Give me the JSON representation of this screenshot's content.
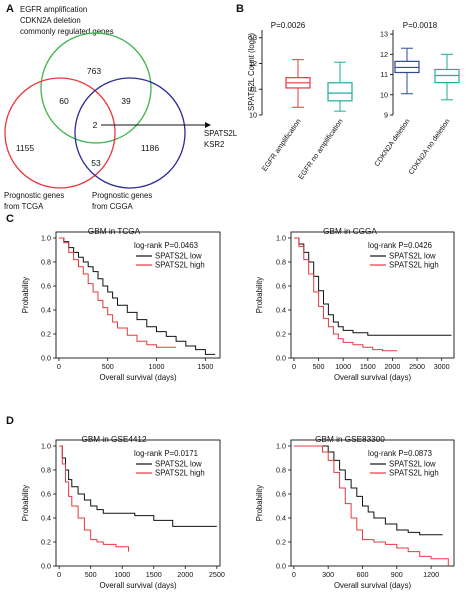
{
  "panels": {
    "A": {
      "letter": "A",
      "venn": {
        "top_label_lines": [
          "EGFR amplification",
          "CDKN2A deletion",
          "commonly regulated genes"
        ],
        "left_label_lines": [
          "Prognostic genes",
          "from TCGA"
        ],
        "right_label_lines": [
          "Prognostic genes",
          "from CGGA"
        ],
        "arrow_label_lines": [
          "SPATS2L",
          "KSR2"
        ],
        "counts": {
          "top_only": "763",
          "left_only": "1155",
          "right_only": "1186",
          "top_left": "60",
          "top_right": "39",
          "left_right": "53",
          "all_three": "2"
        },
        "colors": {
          "top": "#3cb44b",
          "left": "#e8383d",
          "right": "#2b2b9a"
        }
      }
    },
    "B": {
      "letter": "B",
      "ylabel": "SPATS2L Count (log2)",
      "left": {
        "pvalue": "P=0.0026",
        "yticks": [
          "10",
          "11",
          "12",
          "13"
        ],
        "groups": [
          "EGFR amplification",
          "EGFR no amplification"
        ],
        "colors": [
          "#e8383d",
          "#1fae9a"
        ]
      },
      "right": {
        "pvalue": "P=0.0018",
        "yticks": [
          "9",
          "10",
          "11",
          "12",
          "13"
        ],
        "groups": [
          "CDKN2A deletion",
          "CDKN2A no deletion"
        ],
        "colors": [
          "#2b4a9a",
          "#1fae9a"
        ]
      }
    },
    "C": {
      "letter": "C"
    },
    "D": {
      "letter": "D"
    }
  },
  "legend": {
    "low": "SPATS2L low",
    "high": "SPATS2L high"
  },
  "km_common": {
    "ylabel": "Probability",
    "xlabel": "Overall survival (days)",
    "yticks": [
      "0.0",
      "0.2",
      "0.4",
      "0.6",
      "0.8",
      "1.0"
    ]
  },
  "km_plots": [
    {
      "title": "GBM in TCGA",
      "pvalue": "log-rank P=0.0463",
      "xticks": [
        "0",
        "500",
        "1000",
        "1500"
      ]
    },
    {
      "title": "GBM in CGGA",
      "pvalue": "log-rank P=0.0426",
      "xticks": [
        "0",
        "500",
        "1000",
        "1500",
        "2000",
        "2500",
        "3000"
      ]
    },
    {
      "title": "GBM in GSE4412",
      "pvalue": "log-rank P=0.0171",
      "xticks": [
        "0",
        "500",
        "1000",
        "1500",
        "2000",
        "2500"
      ]
    },
    {
      "title": "GBM in GSE83300",
      "pvalue": "log-rank P=0.0873",
      "xticks": [
        "0",
        "300",
        "600",
        "900",
        "1200"
      ]
    }
  ],
  "colors": {
    "low": "#111111",
    "high": "#e8383d"
  },
  "chart_data": [
    {
      "type": "box",
      "pvalue": "P=0.0026",
      "ylabel": "SPATS2L Count (log2)",
      "ylim": [
        10,
        13.3
      ],
      "groups": [
        {
          "name": "EGFR amplification",
          "whisker_low": 10.3,
          "q1": 11.05,
          "median": 11.25,
          "q3": 11.45,
          "whisker_high": 12.15
        },
        {
          "name": "EGFR no amplification",
          "whisker_low": 10.15,
          "q1": 10.55,
          "median": 10.85,
          "q3": 11.25,
          "whisker_high": 12.05
        }
      ]
    },
    {
      "type": "box",
      "pvalue": "P=0.0018",
      "ylabel": "SPATS2L Count (log2)",
      "ylim": [
        9,
        13.2
      ],
      "groups": [
        {
          "name": "CDKN2A deletion",
          "whisker_low": 10.05,
          "q1": 11.1,
          "median": 11.35,
          "q3": 11.65,
          "whisker_high": 12.3
        },
        {
          "name": "CDKN2A no deletion",
          "whisker_low": 9.75,
          "q1": 10.6,
          "median": 10.95,
          "q3": 11.25,
          "whisker_high": 12.0
        }
      ]
    },
    {
      "type": "line",
      "title": "GBM in TCGA",
      "xlabel": "Overall survival (days)",
      "ylabel": "Probability",
      "xlim": [
        -30,
        1650
      ],
      "ylim": [
        0,
        1.05
      ],
      "series": [
        {
          "name": "SPATS2L low",
          "points": [
            [
              0,
              1.0
            ],
            [
              50,
              0.97
            ],
            [
              100,
              0.92
            ],
            [
              150,
              0.88
            ],
            [
              200,
              0.84
            ],
            [
              250,
              0.8
            ],
            [
              300,
              0.76
            ],
            [
              350,
              0.72
            ],
            [
              400,
              0.66
            ],
            [
              450,
              0.6
            ],
            [
              500,
              0.55
            ],
            [
              550,
              0.5
            ],
            [
              600,
              0.44
            ],
            [
              700,
              0.38
            ],
            [
              800,
              0.32
            ],
            [
              900,
              0.26
            ],
            [
              1000,
              0.22
            ],
            [
              1100,
              0.18
            ],
            [
              1200,
              0.14
            ],
            [
              1300,
              0.1
            ],
            [
              1400,
              0.07
            ],
            [
              1500,
              0.03
            ],
            [
              1600,
              0.03
            ]
          ]
        },
        {
          "name": "SPATS2L high",
          "points": [
            [
              0,
              1.0
            ],
            [
              50,
              0.96
            ],
            [
              100,
              0.88
            ],
            [
              150,
              0.82
            ],
            [
              200,
              0.76
            ],
            [
              250,
              0.7
            ],
            [
              300,
              0.62
            ],
            [
              350,
              0.55
            ],
            [
              400,
              0.48
            ],
            [
              450,
              0.42
            ],
            [
              500,
              0.36
            ],
            [
              550,
              0.3
            ],
            [
              600,
              0.25
            ],
            [
              700,
              0.19
            ],
            [
              800,
              0.14
            ],
            [
              900,
              0.11
            ],
            [
              1000,
              0.09
            ],
            [
              1100,
              0.09
            ],
            [
              1200,
              0.09
            ]
          ]
        }
      ]
    },
    {
      "type": "line",
      "title": "GBM in CGGA",
      "xlabel": "Overall survival (days)",
      "ylabel": "Probability",
      "xlim": [
        -60,
        3250
      ],
      "ylim": [
        0,
        1.05
      ],
      "series": [
        {
          "name": "SPATS2L low",
          "points": [
            [
              0,
              1.0
            ],
            [
              100,
              0.95
            ],
            [
              200,
              0.88
            ],
            [
              300,
              0.8
            ],
            [
              400,
              0.68
            ],
            [
              500,
              0.56
            ],
            [
              600,
              0.45
            ],
            [
              700,
              0.36
            ],
            [
              800,
              0.3
            ],
            [
              900,
              0.26
            ],
            [
              1000,
              0.23
            ],
            [
              1200,
              0.21
            ],
            [
              1500,
              0.19
            ],
            [
              2000,
              0.19
            ],
            [
              3200,
              0.19
            ]
          ]
        },
        {
          "name": "SPATS2L high",
          "points": [
            [
              0,
              1.0
            ],
            [
              100,
              0.93
            ],
            [
              200,
              0.82
            ],
            [
              300,
              0.7
            ],
            [
              400,
              0.55
            ],
            [
              500,
              0.43
            ],
            [
              600,
              0.33
            ],
            [
              700,
              0.26
            ],
            [
              800,
              0.2
            ],
            [
              900,
              0.16
            ],
            [
              1000,
              0.13
            ],
            [
              1200,
              0.11
            ],
            [
              1400,
              0.09
            ],
            [
              1600,
              0.07
            ],
            [
              1800,
              0.06
            ],
            [
              2100,
              0.06
            ]
          ]
        }
      ]
    },
    {
      "type": "line",
      "title": "GBM in GSE4412",
      "xlabel": "Overall survival (days)",
      "ylabel": "Probability",
      "xlim": [
        -50,
        2550
      ],
      "ylim": [
        0,
        1.05
      ],
      "series": [
        {
          "name": "SPATS2L low",
          "points": [
            [
              0,
              1.0
            ],
            [
              50,
              0.9
            ],
            [
              100,
              0.8
            ],
            [
              150,
              0.72
            ],
            [
              200,
              0.66
            ],
            [
              300,
              0.6
            ],
            [
              400,
              0.55
            ],
            [
              500,
              0.5
            ],
            [
              600,
              0.47
            ],
            [
              700,
              0.44
            ],
            [
              900,
              0.44
            ],
            [
              1200,
              0.42
            ],
            [
              1500,
              0.38
            ],
            [
              1800,
              0.33
            ],
            [
              2000,
              0.33
            ],
            [
              2500,
              0.33
            ]
          ]
        },
        {
          "name": "SPATS2L high",
          "points": [
            [
              0,
              1.0
            ],
            [
              50,
              0.85
            ],
            [
              100,
              0.7
            ],
            [
              150,
              0.58
            ],
            [
              200,
              0.5
            ],
            [
              300,
              0.4
            ],
            [
              400,
              0.3
            ],
            [
              500,
              0.22
            ],
            [
              600,
              0.2
            ],
            [
              700,
              0.18
            ],
            [
              900,
              0.16
            ],
            [
              1100,
              0.12
            ]
          ]
        }
      ]
    },
    {
      "type": "line",
      "title": "GBM in GSE83300",
      "xlabel": "Overall survival (days)",
      "ylabel": "Probability",
      "xlim": [
        -25,
        1400
      ],
      "ylim": [
        0,
        1.05
      ],
      "series": [
        {
          "name": "SPATS2L low",
          "points": [
            [
              0,
              1.0
            ],
            [
              250,
              1.0
            ],
            [
              300,
              0.95
            ],
            [
              350,
              0.88
            ],
            [
              400,
              0.8
            ],
            [
              450,
              0.72
            ],
            [
              500,
              0.65
            ],
            [
              550,
              0.58
            ],
            [
              600,
              0.5
            ],
            [
              650,
              0.45
            ],
            [
              700,
              0.4
            ],
            [
              800,
              0.35
            ],
            [
              900,
              0.3
            ],
            [
              1000,
              0.28
            ],
            [
              1100,
              0.26
            ],
            [
              1300,
              0.26
            ]
          ]
        },
        {
          "name": "SPATS2L high",
          "points": [
            [
              0,
              1.0
            ],
            [
              200,
              1.0
            ],
            [
              250,
              0.95
            ],
            [
              300,
              0.88
            ],
            [
              350,
              0.78
            ],
            [
              400,
              0.65
            ],
            [
              450,
              0.52
            ],
            [
              500,
              0.4
            ],
            [
              550,
              0.3
            ],
            [
              600,
              0.22
            ],
            [
              700,
              0.2
            ],
            [
              800,
              0.18
            ],
            [
              900,
              0.15
            ],
            [
              1000,
              0.12
            ],
            [
              1100,
              0.08
            ],
            [
              1200,
              0.06
            ],
            [
              1350,
              0.0
            ]
          ]
        }
      ]
    }
  ]
}
